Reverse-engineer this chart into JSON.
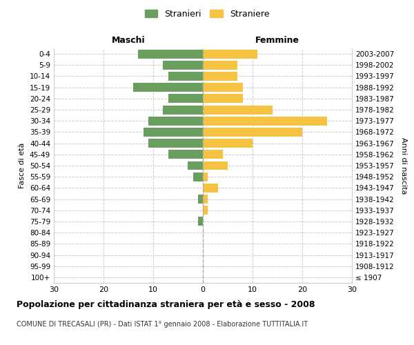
{
  "age_groups": [
    "100+",
    "95-99",
    "90-94",
    "85-89",
    "80-84",
    "75-79",
    "70-74",
    "65-69",
    "60-64",
    "55-59",
    "50-54",
    "45-49",
    "40-44",
    "35-39",
    "30-34",
    "25-29",
    "20-24",
    "15-19",
    "10-14",
    "5-9",
    "0-4"
  ],
  "birth_years": [
    "≤ 1907",
    "1908-1912",
    "1913-1917",
    "1918-1922",
    "1923-1927",
    "1928-1932",
    "1933-1937",
    "1938-1942",
    "1943-1947",
    "1948-1952",
    "1953-1957",
    "1958-1962",
    "1963-1967",
    "1968-1972",
    "1973-1977",
    "1978-1982",
    "1983-1987",
    "1988-1992",
    "1993-1997",
    "1998-2002",
    "2003-2007"
  ],
  "maschi": [
    0,
    0,
    0,
    0,
    0,
    1,
    0,
    1,
    0,
    2,
    3,
    7,
    11,
    12,
    11,
    8,
    7,
    14,
    7,
    8,
    13
  ],
  "femmine": [
    0,
    0,
    0,
    0,
    0,
    0,
    1,
    1,
    3,
    1,
    5,
    4,
    10,
    20,
    25,
    14,
    8,
    8,
    7,
    7,
    11
  ],
  "maschi_color": "#6a9e5e",
  "femmine_color": "#f5c242",
  "background_color": "#ffffff",
  "grid_color": "#cccccc",
  "title": "Popolazione per cittadinanza straniera per età e sesso - 2008",
  "subtitle": "COMUNE DI TRECASALI (PR) - Dati ISTAT 1° gennaio 2008 - Elaborazione TUTTITALIA.IT",
  "xlabel_left": "Maschi",
  "xlabel_right": "Femmine",
  "ylabel_left": "Fasce di età",
  "ylabel_right": "Anni di nascita",
  "legend_maschi": "Stranieri",
  "legend_femmine": "Straniere",
  "xlim": 30,
  "bar_height": 0.8
}
